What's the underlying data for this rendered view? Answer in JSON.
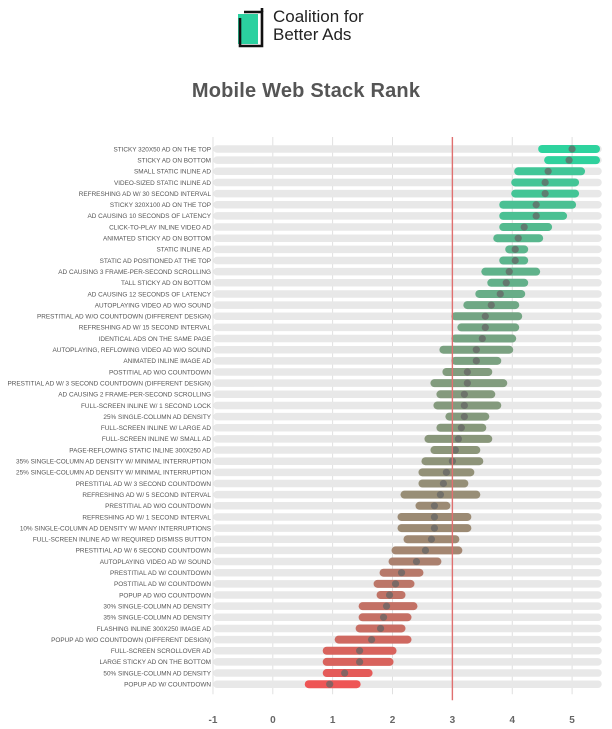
{
  "logo": {
    "line1": "Coalition for",
    "line2": "Better Ads",
    "icon": "coalition-logo-icon",
    "color": "#2bd1a0"
  },
  "chart_data": {
    "type": "range-dot",
    "title": "Mobile Web Stack Rank",
    "xlabel": "",
    "ylabel": "",
    "xlim": [
      -1,
      5.5
    ],
    "xticks": [
      "-1",
      "0",
      "1",
      "2",
      "3",
      "4",
      "5"
    ],
    "threshold": 3,
    "threshold_color": "#e07070",
    "colors": {
      "high": "#2ed39e",
      "low": "#ee5555",
      "track": "#e8e8e8"
    },
    "rows": [
      {
        "label": "STICKY 320X50 AD ON THE TOP",
        "lo": 4.5,
        "hi": 5.4,
        "v": 5.0
      },
      {
        "label": "STICKY AD ON BOTTOM",
        "lo": 4.6,
        "hi": 5.4,
        "v": 4.95
      },
      {
        "label": "SMALL STATIC INLINE AD",
        "lo": 4.1,
        "hi": 5.15,
        "v": 4.6
      },
      {
        "label": "VIDEO-SIZED STATIC INLINE AD",
        "lo": 4.05,
        "hi": 5.05,
        "v": 4.55
      },
      {
        "label": "REFRESHING AD W/ 30 SECOND INTERVAL",
        "lo": 4.05,
        "hi": 5.05,
        "v": 4.55
      },
      {
        "label": "STICKY 320X100 AD ON THE TOP",
        "lo": 3.85,
        "hi": 5.0,
        "v": 4.4
      },
      {
        "label": "AD CAUSING 10 SECONDS OF LATENCY",
        "lo": 3.85,
        "hi": 4.85,
        "v": 4.4
      },
      {
        "label": "CLICK-TO-PLAY INLINE VIDEO AD",
        "lo": 3.85,
        "hi": 4.6,
        "v": 4.2
      },
      {
        "label": "ANIMATED STICKY AD ON BOTTOM",
        "lo": 3.75,
        "hi": 4.45,
        "v": 4.1
      },
      {
        "label": "STATIC INLINE AD",
        "lo": 3.95,
        "hi": 4.2,
        "v": 4.05
      },
      {
        "label": "STATIC AD POSITIONED AT THE TOP",
        "lo": 3.85,
        "hi": 4.2,
        "v": 4.05
      },
      {
        "label": "AD CAUSING 3 FRAME-PER-SECOND SCROLLING",
        "lo": 3.55,
        "hi": 4.4,
        "v": 3.95
      },
      {
        "label": "TALL STICKY AD ON BOTTOM",
        "lo": 3.65,
        "hi": 4.2,
        "v": 3.9
      },
      {
        "label": "AD CAUSING 12 SECONDS OF LATENCY",
        "lo": 3.45,
        "hi": 4.15,
        "v": 3.8
      },
      {
        "label": "AUTOPLAYING VIDEO AD W/O SOUND",
        "lo": 3.25,
        "hi": 4.05,
        "v": 3.65
      },
      {
        "label": "PRESTITIAL AD W/O COUNTDOWN (DIFFERENT DESIGN)",
        "lo": 3.05,
        "hi": 4.1,
        "v": 3.55
      },
      {
        "label": "REFRESHING AD W/ 15 SECOND INTERVAL",
        "lo": 3.15,
        "hi": 4.05,
        "v": 3.55
      },
      {
        "label": "IDENTICAL ADS ON THE SAME PAGE",
        "lo": 3.05,
        "hi": 4.0,
        "v": 3.5
      },
      {
        "label": "AUTOPLAYING, REFLOWING VIDEO AD W/O SOUND",
        "lo": 2.85,
        "hi": 3.95,
        "v": 3.4
      },
      {
        "label": "ANIMATED INLINE IMAGE AD",
        "lo": 3.05,
        "hi": 3.75,
        "v": 3.4
      },
      {
        "label": "POSTITIAL AD W/O COUNTDOWN",
        "lo": 2.9,
        "hi": 3.6,
        "v": 3.25
      },
      {
        "label": "PRESTITIAL AD W/ 3 SECOND COUNTDOWN (DIFFERENT DESIGN)",
        "lo": 2.7,
        "hi": 3.85,
        "v": 3.25
      },
      {
        "label": "AD CAUSING 2 FRAME-PER-SECOND SCROLLING",
        "lo": 2.8,
        "hi": 3.65,
        "v": 3.2
      },
      {
        "label": "FULL-SCREEN INLINE W/ 1 SECOND LOCK",
        "lo": 2.75,
        "hi": 3.75,
        "v": 3.2
      },
      {
        "label": "25% SINGLE-COLUMN AD DENSITY",
        "lo": 2.95,
        "hi": 3.55,
        "v": 3.2
      },
      {
        "label": "FULL-SCREEN INLINE W/ LARGE AD",
        "lo": 2.8,
        "hi": 3.5,
        "v": 3.15
      },
      {
        "label": "FULL-SCREEN INLINE W/ SMALL AD",
        "lo": 2.6,
        "hi": 3.6,
        "v": 3.1
      },
      {
        "label": "PAGE-REFLOWING STATIC INLINE 300X250 AD",
        "lo": 2.7,
        "hi": 3.4,
        "v": 3.05
      },
      {
        "label": "35% SINGLE-COLUMN AD DENSITY W/ MINIMAL INTERRUPTION",
        "lo": 2.55,
        "hi": 3.45,
        "v": 3.0
      },
      {
        "label": "25% SINGLE-COLUMN AD DENSITY W/ MINIMAL INTERRUPTION",
        "lo": 2.5,
        "hi": 3.3,
        "v": 2.9
      },
      {
        "label": "PRESTITIAL AD W/ 3 SECOND COUNTDOWN",
        "lo": 2.5,
        "hi": 3.2,
        "v": 2.85
      },
      {
        "label": "REFRESHING AD W/ 5 SECOND INTERVAL",
        "lo": 2.2,
        "hi": 3.4,
        "v": 2.8
      },
      {
        "label": "PRESTITIAL AD W/O COUNTDOWN",
        "lo": 2.45,
        "hi": 2.9,
        "v": 2.7
      },
      {
        "label": "REFRESHING AD W/ 1 SECOND INTERVAL",
        "lo": 2.15,
        "hi": 3.25,
        "v": 2.7
      },
      {
        "label": "10% SINGLE-COLUMN AD DENSITY W/ MANY INTERRUPTIONS",
        "lo": 2.15,
        "hi": 3.25,
        "v": 2.7
      },
      {
        "label": "FULL-SCREEN INLINE AD W/ REQUIRED DISMISS BUTTON",
        "lo": 2.25,
        "hi": 3.05,
        "v": 2.65
      },
      {
        "label": "PRESTITIAL AD W/ 6 SECOND COUNTDOWN",
        "lo": 2.05,
        "hi": 3.1,
        "v": 2.55
      },
      {
        "label": "AUTOPLAYING VIDEO AD W/ SOUND",
        "lo": 2.0,
        "hi": 2.75,
        "v": 2.4
      },
      {
        "label": "PRESTITIAL AD W/ COUNTDOWN",
        "lo": 1.85,
        "hi": 2.45,
        "v": 2.15
      },
      {
        "label": "POSTITIAL AD W/ COUNTDOWN",
        "lo": 1.75,
        "hi": 2.3,
        "v": 2.05
      },
      {
        "label": "POPUP AD W/O COUNTDOWN",
        "lo": 1.8,
        "hi": 2.15,
        "v": 1.95
      },
      {
        "label": "30% SINGLE-COLUMN AD DENSITY",
        "lo": 1.5,
        "hi": 2.35,
        "v": 1.9
      },
      {
        "label": "35% SINGLE-COLUMN AD DENSITY",
        "lo": 1.5,
        "hi": 2.25,
        "v": 1.85
      },
      {
        "label": "FLASHING INLINE 300X250 IMAGE AD",
        "lo": 1.45,
        "hi": 2.15,
        "v": 1.8
      },
      {
        "label": "POPUP AD W/O COUNTDOWN (DIFFERENT DESIGN)",
        "lo": 1.1,
        "hi": 2.25,
        "v": 1.65
      },
      {
        "label": "FULL-SCREEN SCROLLOVER AD",
        "lo": 0.9,
        "hi": 2.0,
        "v": 1.45
      },
      {
        "label": "LARGE STICKY AD ON THE BOTTOM",
        "lo": 0.9,
        "hi": 1.95,
        "v": 1.45
      },
      {
        "label": "50% SINGLE-COLUMN AD DENSITY",
        "lo": 0.9,
        "hi": 1.6,
        "v": 1.2
      },
      {
        "label": "POPUP AD W/ COUNTDOWN",
        "lo": 0.6,
        "hi": 1.4,
        "v": 0.95
      }
    ]
  }
}
